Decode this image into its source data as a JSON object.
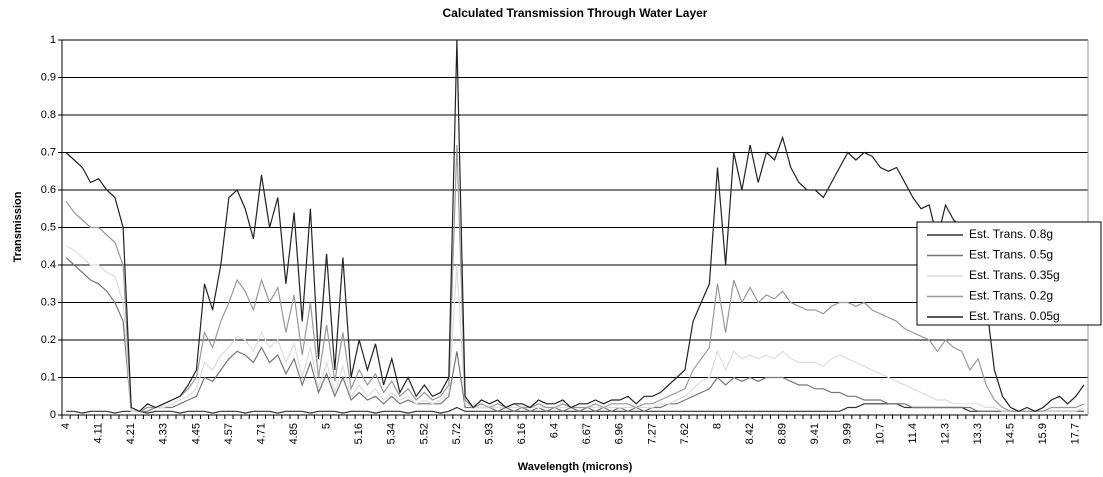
{
  "chart_data": {
    "type": "line",
    "title": "Calculated Transmission Through Water Layer",
    "x_label": "Wavelength (microns)",
    "y_label": "Transmission",
    "categories": [
      "4",
      null,
      null,
      null,
      "4.11",
      null,
      null,
      null,
      "4.21",
      null,
      null,
      null,
      "4.33",
      null,
      null,
      null,
      "4.45",
      null,
      null,
      null,
      "4.57",
      null,
      null,
      null,
      "4.71",
      null,
      null,
      null,
      "4.85",
      null,
      null,
      null,
      "5",
      null,
      null,
      null,
      "5.16",
      null,
      null,
      null,
      "5.34",
      null,
      null,
      null,
      "5.52",
      null,
      null,
      null,
      "5.72",
      null,
      null,
      null,
      "5.93",
      null,
      null,
      null,
      "6.16",
      null,
      null,
      null,
      "6.4",
      null,
      null,
      null,
      "6.67",
      null,
      null,
      null,
      "6.96",
      null,
      null,
      null,
      "7.27",
      null,
      null,
      null,
      "7.62",
      null,
      null,
      null,
      "8",
      null,
      null,
      null,
      "8.42",
      null,
      null,
      null,
      "8.89",
      null,
      null,
      null,
      "9.41",
      null,
      null,
      null,
      "9.99",
      null,
      null,
      null,
      "10.7",
      null,
      null,
      null,
      "11.4",
      null,
      null,
      null,
      "12.3",
      null,
      null,
      null,
      "13.3",
      null,
      null,
      null,
      "14.5",
      null,
      null,
      null,
      "15.9",
      null,
      null,
      null,
      "17.7",
      null
    ],
    "ylim": [
      0,
      1
    ],
    "yticks": [
      0,
      0.1,
      0.2,
      0.3,
      0.4,
      0.5,
      0.6,
      0.7,
      0.8,
      0.9,
      1
    ],
    "grid": true,
    "legend": "right",
    "series": [
      {
        "name": "Est. Trans. 0.8g",
        "color": "#333333",
        "values": [
          0.01,
          0.01,
          0.005,
          0.01,
          0.01,
          0.01,
          0.005,
          0.01,
          0.01,
          0.01,
          0.005,
          0.01,
          0.01,
          0.01,
          0.005,
          0.01,
          0.01,
          0.01,
          0.005,
          0.01,
          0.01,
          0.01,
          0.005,
          0.01,
          0.01,
          0.01,
          0.005,
          0.01,
          0.01,
          0.01,
          0.005,
          0.01,
          0.01,
          0.01,
          0.005,
          0.01,
          0.01,
          0.01,
          0.005,
          0.01,
          0.01,
          0.01,
          0.005,
          0.01,
          0.01,
          0.01,
          0.005,
          0.01,
          0.02,
          0.01,
          0.01,
          0.01,
          0.01,
          0.01,
          0.01,
          0.01,
          0.01,
          0.01,
          0.01,
          0.01,
          0.01,
          0.01,
          0.01,
          0.01,
          0.01,
          0.01,
          0.01,
          0.01,
          0.01,
          0.01,
          0.01,
          0.01,
          0.01,
          0.01,
          0.01,
          0.01,
          0.01,
          0.01,
          0.01,
          0.01,
          0.01,
          0.01,
          0.01,
          0.01,
          0.01,
          0.01,
          0.01,
          0.01,
          0.01,
          0.01,
          0.01,
          0.01,
          0.01,
          0.01,
          0.01,
          0.01,
          0.02,
          0.02,
          0.03,
          0.03,
          0.03,
          0.03,
          0.03,
          0.02,
          0.02,
          0.02,
          0.02,
          0.02,
          0.02,
          0.02,
          0.02,
          0.01,
          0.01,
          0.01,
          0.01,
          0.01,
          0.01,
          0.01,
          0.01,
          0.01,
          0.01,
          0.01,
          0.01,
          0.01,
          0.01,
          0.01
        ]
      },
      {
        "name": "Est. Trans. 0.5g",
        "color": "#777777",
        "values": [
          0.42,
          0.4,
          0.38,
          0.36,
          0.35,
          0.33,
          0.3,
          0.25,
          0.01,
          0.01,
          0.01,
          0.02,
          0.02,
          0.02,
          0.03,
          0.04,
          0.05,
          0.1,
          0.09,
          0.12,
          0.15,
          0.17,
          0.16,
          0.14,
          0.18,
          0.14,
          0.16,
          0.11,
          0.15,
          0.08,
          0.14,
          0.06,
          0.11,
          0.05,
          0.1,
          0.04,
          0.06,
          0.04,
          0.05,
          0.03,
          0.05,
          0.03,
          0.04,
          0.03,
          0.03,
          0.03,
          0.03,
          0.05,
          0.17,
          0.02,
          0.02,
          0.02,
          0.02,
          0.01,
          0.02,
          0.01,
          0.02,
          0.01,
          0.02,
          0.01,
          0.02,
          0.01,
          0.02,
          0.01,
          0.02,
          0.01,
          0.02,
          0.01,
          0.02,
          0.01,
          0.02,
          0.01,
          0.02,
          0.02,
          0.03,
          0.03,
          0.04,
          0.05,
          0.06,
          0.07,
          0.1,
          0.08,
          0.1,
          0.09,
          0.1,
          0.09,
          0.1,
          0.1,
          0.1,
          0.09,
          0.08,
          0.08,
          0.07,
          0.07,
          0.06,
          0.06,
          0.05,
          0.05,
          0.04,
          0.04,
          0.04,
          0.03,
          0.03,
          0.03,
          0.02,
          0.02,
          0.02,
          0.02,
          0.02,
          0.02,
          0.02,
          0.02,
          0.01,
          0.01,
          0.01,
          0.01,
          0.01,
          0.01,
          0.01,
          0.01,
          0.01,
          0.01,
          0.01,
          0.01,
          0.01,
          0.01
        ]
      },
      {
        "name": "Est. Trans. 0.35g",
        "color": "#dddddd",
        "values": [
          0.45,
          0.44,
          0.42,
          0.4,
          0.4,
          0.38,
          0.37,
          0.3,
          0.01,
          0.01,
          0.02,
          0.02,
          0.02,
          0.03,
          0.04,
          0.05,
          0.07,
          0.14,
          0.12,
          0.16,
          0.18,
          0.21,
          0.2,
          0.17,
          0.22,
          0.18,
          0.2,
          0.14,
          0.19,
          0.1,
          0.18,
          0.07,
          0.14,
          0.06,
          0.13,
          0.05,
          0.08,
          0.05,
          0.07,
          0.04,
          0.06,
          0.04,
          0.05,
          0.03,
          0.04,
          0.03,
          0.04,
          0.06,
          0.4,
          0.03,
          0.02,
          0.02,
          0.02,
          0.02,
          0.02,
          0.02,
          0.02,
          0.02,
          0.02,
          0.02,
          0.02,
          0.02,
          0.02,
          0.02,
          0.02,
          0.02,
          0.02,
          0.02,
          0.02,
          0.02,
          0.02,
          0.02,
          0.02,
          0.03,
          0.03,
          0.04,
          0.05,
          0.07,
          0.09,
          0.1,
          0.17,
          0.12,
          0.17,
          0.15,
          0.16,
          0.15,
          0.16,
          0.15,
          0.17,
          0.15,
          0.14,
          0.14,
          0.14,
          0.13,
          0.15,
          0.16,
          0.15,
          0.14,
          0.13,
          0.12,
          0.11,
          0.1,
          0.09,
          0.08,
          0.07,
          0.06,
          0.05,
          0.04,
          0.04,
          0.03,
          0.03,
          0.03,
          0.03,
          0.02,
          0.02,
          0.01,
          0.01,
          0.01,
          0.01,
          0.01,
          0.01,
          0.01,
          0.01,
          0.01,
          0.01,
          0.02
        ]
      },
      {
        "name": "Est. Trans. 0.2g",
        "color": "#999999",
        "values": [
          0.57,
          0.54,
          0.52,
          0.5,
          0.5,
          0.48,
          0.46,
          0.4,
          0.02,
          0.01,
          0.02,
          0.02,
          0.03,
          0.04,
          0.05,
          0.07,
          0.1,
          0.22,
          0.18,
          0.25,
          0.3,
          0.36,
          0.33,
          0.28,
          0.36,
          0.3,
          0.34,
          0.22,
          0.32,
          0.16,
          0.3,
          0.1,
          0.24,
          0.09,
          0.22,
          0.07,
          0.12,
          0.08,
          0.11,
          0.06,
          0.09,
          0.05,
          0.07,
          0.04,
          0.06,
          0.04,
          0.05,
          0.08,
          0.72,
          0.04,
          0.02,
          0.03,
          0.02,
          0.03,
          0.02,
          0.03,
          0.02,
          0.02,
          0.03,
          0.02,
          0.02,
          0.03,
          0.02,
          0.02,
          0.02,
          0.03,
          0.02,
          0.03,
          0.03,
          0.03,
          0.02,
          0.03,
          0.03,
          0.04,
          0.05,
          0.06,
          0.07,
          0.12,
          0.15,
          0.18,
          0.35,
          0.22,
          0.36,
          0.3,
          0.34,
          0.3,
          0.32,
          0.31,
          0.33,
          0.3,
          0.29,
          0.28,
          0.28,
          0.27,
          0.29,
          0.3,
          0.3,
          0.29,
          0.3,
          0.28,
          0.27,
          0.26,
          0.25,
          0.23,
          0.22,
          0.21,
          0.2,
          0.17,
          0.2,
          0.18,
          0.17,
          0.12,
          0.15,
          0.08,
          0.04,
          0.02,
          0.01,
          0.01,
          0.01,
          0.01,
          0.01,
          0.02,
          0.02,
          0.02,
          0.02,
          0.03
        ]
      },
      {
        "name": "Est. Trans. 0.05g",
        "color": "#222222",
        "values": [
          0.7,
          0.68,
          0.66,
          0.62,
          0.63,
          0.6,
          0.58,
          0.5,
          0.02,
          0.01,
          0.03,
          0.02,
          0.03,
          0.04,
          0.05,
          0.08,
          0.12,
          0.35,
          0.28,
          0.4,
          0.58,
          0.6,
          0.55,
          0.47,
          0.64,
          0.5,
          0.58,
          0.35,
          0.54,
          0.25,
          0.55,
          0.15,
          0.43,
          0.12,
          0.42,
          0.1,
          0.2,
          0.12,
          0.19,
          0.08,
          0.15,
          0.06,
          0.1,
          0.05,
          0.08,
          0.05,
          0.06,
          0.1,
          1.0,
          0.05,
          0.02,
          0.04,
          0.03,
          0.04,
          0.02,
          0.03,
          0.03,
          0.02,
          0.04,
          0.03,
          0.03,
          0.04,
          0.02,
          0.03,
          0.03,
          0.04,
          0.03,
          0.04,
          0.04,
          0.05,
          0.03,
          0.05,
          0.05,
          0.06,
          0.08,
          0.1,
          0.12,
          0.25,
          0.3,
          0.35,
          0.66,
          0.4,
          0.7,
          0.6,
          0.72,
          0.62,
          0.7,
          0.68,
          0.74,
          0.66,
          0.62,
          0.6,
          0.6,
          0.58,
          0.62,
          0.66,
          0.7,
          0.68,
          0.7,
          0.69,
          0.66,
          0.65,
          0.66,
          0.62,
          0.58,
          0.55,
          0.56,
          0.47,
          0.56,
          0.52,
          0.5,
          0.33,
          0.5,
          0.3,
          0.12,
          0.05,
          0.02,
          0.01,
          0.02,
          0.01,
          0.02,
          0.04,
          0.05,
          0.03,
          0.05,
          0.08
        ]
      }
    ]
  }
}
